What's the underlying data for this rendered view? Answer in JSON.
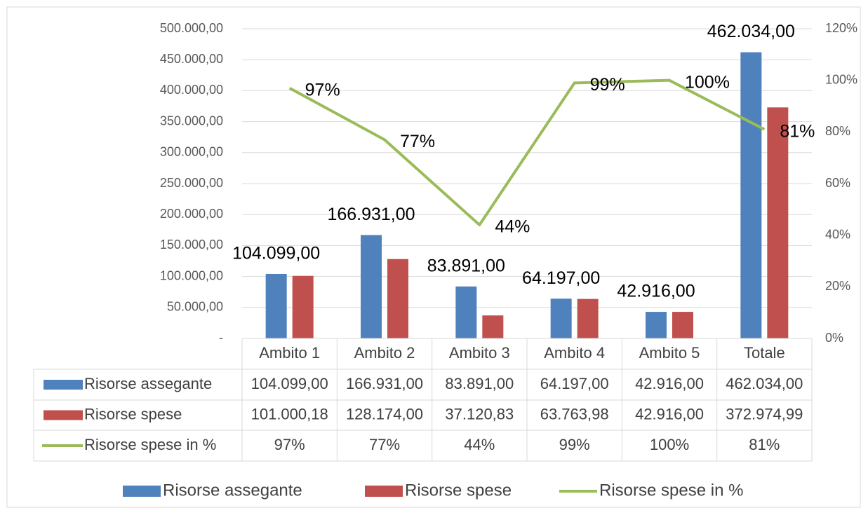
{
  "chart_data": {
    "type": "bar",
    "categories": [
      "Ambito 1",
      "Ambito 2",
      "Ambito 3",
      "Ambito 4",
      "Ambito 5",
      "Totale"
    ],
    "series": [
      {
        "name": "Risorse assegante",
        "color": "#4f81bd",
        "values": [
          104099,
          166931,
          83891,
          64197,
          42916,
          462034
        ],
        "value_labels": [
          "104.099,00",
          "166.931,00",
          "83.891,00",
          "64.197,00",
          "42.916,00",
          "462.034,00"
        ]
      },
      {
        "name": "Risorse spese",
        "color": "#c0504d",
        "values": [
          101000.18,
          128174,
          37120.83,
          63763.98,
          42916,
          372974.99
        ],
        "value_labels": [
          "101.000,18",
          "128.174,00",
          "37.120,83",
          "63.763,98",
          "42.916,00",
          "372.974,99"
        ]
      },
      {
        "name": "Risorse spese in %",
        "color": "#9bbb59",
        "type": "line",
        "axis": "y2",
        "values": [
          97,
          77,
          44,
          99,
          100,
          81
        ],
        "value_labels": [
          "97%",
          "77%",
          "44%",
          "99%",
          "100%",
          "81%"
        ]
      }
    ],
    "ylim": [
      0,
      500000
    ],
    "yticks": [
      {
        "value": 0,
        "label": "-"
      },
      {
        "value": 50000,
        "label": "50.000,00"
      },
      {
        "value": 100000,
        "label": "100.000,00"
      },
      {
        "value": 150000,
        "label": "150.000,00"
      },
      {
        "value": 200000,
        "label": "200.000,00"
      },
      {
        "value": 250000,
        "label": "250.000,00"
      },
      {
        "value": 300000,
        "label": "300.000,00"
      },
      {
        "value": 350000,
        "label": "350.000,00"
      },
      {
        "value": 400000,
        "label": "400.000,00"
      },
      {
        "value": 450000,
        "label": "450.000,00"
      },
      {
        "value": 500000,
        "label": "500.000,00"
      }
    ],
    "y2lim": [
      0,
      120
    ],
    "y2ticks": [
      {
        "value": 0,
        "label": "0%"
      },
      {
        "value": 20,
        "label": "20%"
      },
      {
        "value": 40,
        "label": "40%"
      },
      {
        "value": 60,
        "label": "60%"
      },
      {
        "value": 80,
        "label": "80%"
      },
      {
        "value": 100,
        "label": "100%"
      },
      {
        "value": 120,
        "label": "120%"
      }
    ],
    "grid": true,
    "data_table": true,
    "legend": "bottom"
  }
}
